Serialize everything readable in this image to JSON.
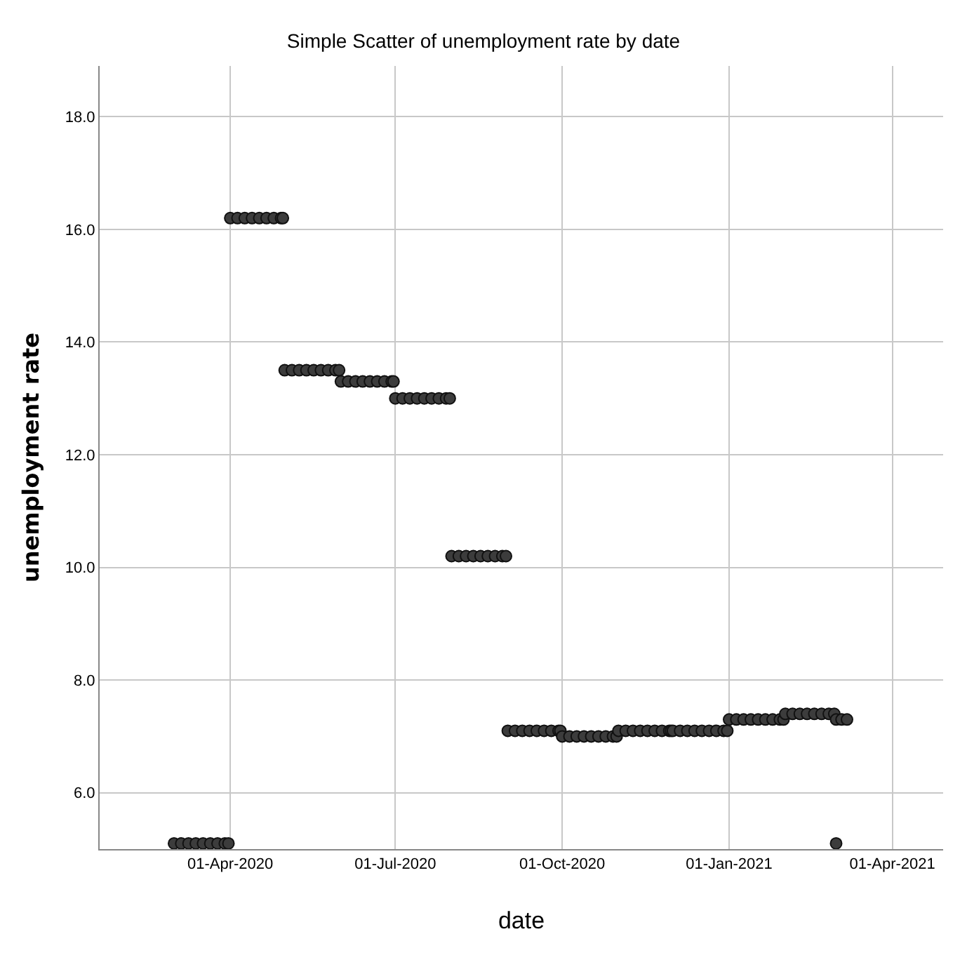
{
  "chart_data": {
    "type": "scatter",
    "title": "Simple Scatter of unemployment rate by date",
    "xlabel": "date",
    "ylabel": "unemployment rate",
    "xlim": [
      "2020-01-20",
      "2021-04-29"
    ],
    "xticks": [
      {
        "value": "2020-04-01",
        "label": "01-Apr-2020"
      },
      {
        "value": "2020-07-01",
        "label": "01-Jul-2020"
      },
      {
        "value": "2020-10-01",
        "label": "01-Oct-2020"
      },
      {
        "value": "2021-01-01",
        "label": "01-Jan-2021"
      },
      {
        "value": "2021-04-01",
        "label": "01-Apr-2021"
      }
    ],
    "ylim": [
      5.0,
      18.9
    ],
    "yticks": [
      {
        "value": 6,
        "label": "6.0"
      },
      {
        "value": 8,
        "label": "8.0"
      },
      {
        "value": 10,
        "label": "10.0"
      },
      {
        "value": 12,
        "label": "12.0"
      },
      {
        "value": 14,
        "label": "14.0"
      },
      {
        "value": 16,
        "label": "16.0"
      },
      {
        "value": 18,
        "label": "18.0"
      }
    ],
    "grid": true,
    "marker": "circle",
    "series": [
      {
        "color": "#3c3c3c",
        "x": [
          "2020-03-01",
          "2020-03-05",
          "2020-03-09",
          "2020-03-13",
          "2020-03-17",
          "2020-03-21",
          "2020-03-25",
          "2020-03-29",
          "2020-03-31",
          "2020-04-01",
          "2020-04-05",
          "2020-04-09",
          "2020-04-13",
          "2020-04-17",
          "2020-04-21",
          "2020-04-25",
          "2020-04-29",
          "2020-04-30",
          "2020-05-01",
          "2020-05-05",
          "2020-05-09",
          "2020-05-13",
          "2020-05-17",
          "2020-05-21",
          "2020-05-25",
          "2020-05-29",
          "2020-05-31",
          "2020-06-01",
          "2020-06-05",
          "2020-06-09",
          "2020-06-13",
          "2020-06-17",
          "2020-06-21",
          "2020-06-25",
          "2020-06-29",
          "2020-06-30",
          "2020-07-01",
          "2020-07-05",
          "2020-07-09",
          "2020-07-13",
          "2020-07-17",
          "2020-07-21",
          "2020-07-25",
          "2020-07-29",
          "2020-07-31",
          "2020-08-01",
          "2020-08-05",
          "2020-08-09",
          "2020-08-13",
          "2020-08-17",
          "2020-08-21",
          "2020-08-25",
          "2020-08-29",
          "2020-08-31",
          "2020-09-01",
          "2020-09-05",
          "2020-09-09",
          "2020-09-13",
          "2020-09-17",
          "2020-09-21",
          "2020-09-25",
          "2020-09-29",
          "2020-09-30",
          "2020-10-01",
          "2020-10-05",
          "2020-10-09",
          "2020-10-13",
          "2020-10-17",
          "2020-10-21",
          "2020-10-25",
          "2020-10-29",
          "2020-10-31",
          "2020-11-01",
          "2020-11-05",
          "2020-11-09",
          "2020-11-13",
          "2020-11-17",
          "2020-11-21",
          "2020-11-25",
          "2020-11-29",
          "2020-11-30",
          "2020-12-01",
          "2020-12-05",
          "2020-12-09",
          "2020-12-13",
          "2020-12-17",
          "2020-12-21",
          "2020-12-25",
          "2020-12-29",
          "2020-12-31",
          "2021-01-01",
          "2021-01-05",
          "2021-01-09",
          "2021-01-13",
          "2021-01-17",
          "2021-01-21",
          "2021-01-25",
          "2021-01-29",
          "2021-01-31",
          "2021-02-01",
          "2021-02-05",
          "2021-02-09",
          "2021-02-13",
          "2021-02-17",
          "2021-02-21",
          "2021-02-25",
          "2021-02-28",
          "2021-03-01",
          "2021-03-04",
          "2021-03-07",
          "2021-03-01"
        ],
        "values": [
          5.1,
          5.1,
          5.1,
          5.1,
          5.1,
          5.1,
          5.1,
          5.1,
          5.1,
          16.2,
          16.2,
          16.2,
          16.2,
          16.2,
          16.2,
          16.2,
          16.2,
          16.2,
          13.5,
          13.5,
          13.5,
          13.5,
          13.5,
          13.5,
          13.5,
          13.5,
          13.5,
          13.3,
          13.3,
          13.3,
          13.3,
          13.3,
          13.3,
          13.3,
          13.3,
          13.3,
          13.0,
          13.0,
          13.0,
          13.0,
          13.0,
          13.0,
          13.0,
          13.0,
          13.0,
          10.2,
          10.2,
          10.2,
          10.2,
          10.2,
          10.2,
          10.2,
          10.2,
          10.2,
          7.1,
          7.1,
          7.1,
          7.1,
          7.1,
          7.1,
          7.1,
          7.1,
          7.1,
          7.0,
          7.0,
          7.0,
          7.0,
          7.0,
          7.0,
          7.0,
          7.0,
          7.0,
          7.1,
          7.1,
          7.1,
          7.1,
          7.1,
          7.1,
          7.1,
          7.1,
          7.1,
          7.1,
          7.1,
          7.1,
          7.1,
          7.1,
          7.1,
          7.1,
          7.1,
          7.1,
          7.3,
          7.3,
          7.3,
          7.3,
          7.3,
          7.3,
          7.3,
          7.3,
          7.3,
          7.4,
          7.4,
          7.4,
          7.4,
          7.4,
          7.4,
          7.4,
          7.4,
          7.3,
          7.3,
          7.3,
          5.1
        ]
      }
    ]
  }
}
